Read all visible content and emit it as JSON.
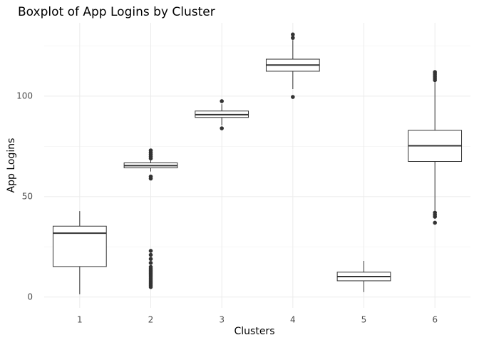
{
  "chart_data": {
    "type": "boxplot",
    "title": "Boxplot of App Logins by Cluster",
    "x_label": "Clusters",
    "y_label": "App Logins",
    "categories": [
      "1",
      "2",
      "3",
      "4",
      "5",
      "6"
    ],
    "boxes": [
      {
        "min": 1.4,
        "q1": 15.2,
        "median": 31.8,
        "q3": 35.3,
        "max": 42.8,
        "outliers": []
      },
      {
        "min": 62.5,
        "q1": 64.3,
        "median": 65.4,
        "q3": 66.8,
        "max": 68.2,
        "outliers": [
          73,
          72,
          71,
          70,
          69,
          60,
          59,
          23,
          21,
          19,
          17,
          15,
          14,
          13,
          12,
          11,
          10,
          9,
          8,
          7,
          6,
          5
        ]
      },
      {
        "min": 85.5,
        "q1": 89.4,
        "median": 90.8,
        "q3": 92.6,
        "max": 96,
        "outliers": [
          84,
          97.5
        ]
      },
      {
        "min": 103.5,
        "q1": 112.4,
        "median": 115.5,
        "q3": 118.4,
        "max": 127.9,
        "outliers": [
          99.6,
          129,
          130.7
        ]
      },
      {
        "min": 2.5,
        "q1": 8.1,
        "median": 10.2,
        "q3": 12.4,
        "max": 18,
        "outliers": []
      },
      {
        "min": 43,
        "q1": 67.5,
        "median": 75.3,
        "q3": 83,
        "max": 107,
        "outliers": [
          112,
          111,
          110,
          109,
          108,
          42,
          41,
          40,
          37
        ]
      }
    ],
    "color": "#333333",
    "ylim": [
      -5.4,
      136.5
    ],
    "yticks": [
      0,
      50,
      100
    ],
    "yminor": [
      25,
      75,
      125
    ],
    "grid": true
  }
}
